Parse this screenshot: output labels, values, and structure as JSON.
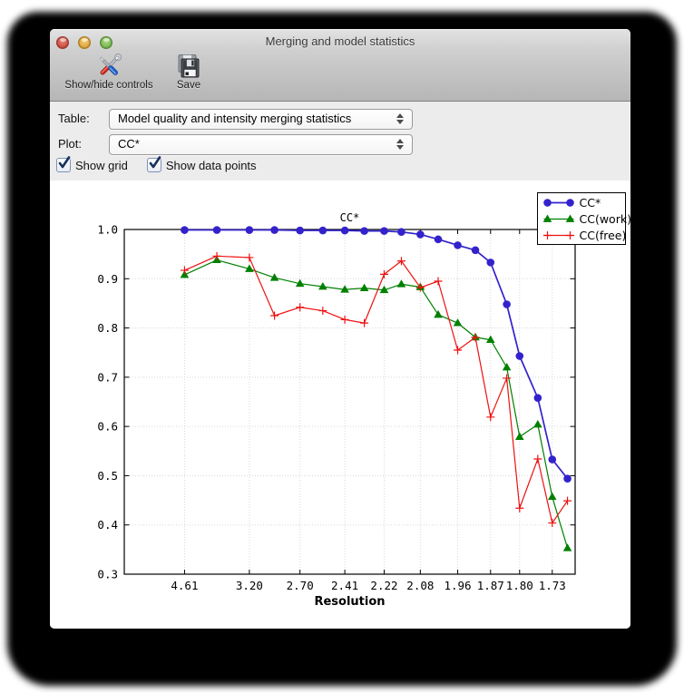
{
  "window": {
    "title": "Merging and model statistics"
  },
  "titlebar_buttons": {
    "close": "close-button",
    "minimize": "minimize-button",
    "zoom": "zoom-button"
  },
  "toolbar": {
    "items": [
      {
        "label": "Show/hide controls",
        "icon": "tools-icon"
      },
      {
        "label": "Save",
        "icon": "save-icon"
      }
    ]
  },
  "controls": {
    "table_label": "Table:",
    "table_value": "Model quality and intensity merging statistics",
    "plot_label": "Plot:",
    "plot_value": "CC*",
    "checkboxes": [
      {
        "label": "Show grid",
        "checked": true
      },
      {
        "label": "Show data points",
        "checked": true
      }
    ]
  },
  "chart_data": {
    "type": "line",
    "title": "CC*",
    "xlabel": "Resolution",
    "x_axis_note": "resolution axis, position proportional to 1/d^2",
    "x_scale_max_inv_d2": 0.352,
    "x_resolution": [
      4.61,
      3.72,
      3.2,
      2.92,
      2.7,
      2.54,
      2.41,
      2.31,
      2.22,
      2.15,
      2.08,
      2.02,
      1.96,
      1.91,
      1.87,
      1.83,
      1.8,
      1.76,
      1.73,
      1.7
    ],
    "x_ticks": [
      4.61,
      3.2,
      2.7,
      2.41,
      2.22,
      2.08,
      1.96,
      1.87,
      1.8,
      1.73
    ],
    "ylim": [
      0.3,
      1.0
    ],
    "y_ticks": [
      0.3,
      0.4,
      0.5,
      0.6,
      0.7,
      0.8,
      0.9,
      1.0
    ],
    "grid": true,
    "show_data_points": true,
    "legend_position": "upper right",
    "series": [
      {
        "name": "CC*",
        "color": "#3322cc",
        "marker": "circle",
        "values": [
          0.999,
          0.999,
          0.999,
          0.999,
          0.998,
          0.998,
          0.998,
          0.997,
          0.997,
          0.995,
          0.99,
          0.98,
          0.968,
          0.958,
          0.933,
          0.848,
          0.743,
          0.658,
          0.533,
          0.494
        ]
      },
      {
        "name": "CC(work)",
        "color": "#008000",
        "marker": "triangle",
        "values": [
          0.908,
          0.938,
          0.92,
          0.902,
          0.89,
          0.884,
          0.878,
          0.881,
          0.877,
          0.889,
          0.883,
          0.827,
          0.81,
          0.781,
          0.776,
          0.72,
          0.579,
          0.604,
          0.457,
          0.353
        ]
      },
      {
        "name": "CC(free)",
        "color": "#ee1111",
        "marker": "plus",
        "values": [
          0.917,
          0.946,
          0.943,
          0.825,
          0.842,
          0.835,
          0.817,
          0.81,
          0.909,
          0.936,
          0.882,
          0.895,
          0.755,
          0.781,
          0.619,
          0.698,
          0.434,
          0.534,
          0.404,
          0.449
        ]
      }
    ],
    "colors": {
      "grid": "#d8d8d8",
      "axis": "#000000",
      "background": "#ffffff"
    }
  }
}
